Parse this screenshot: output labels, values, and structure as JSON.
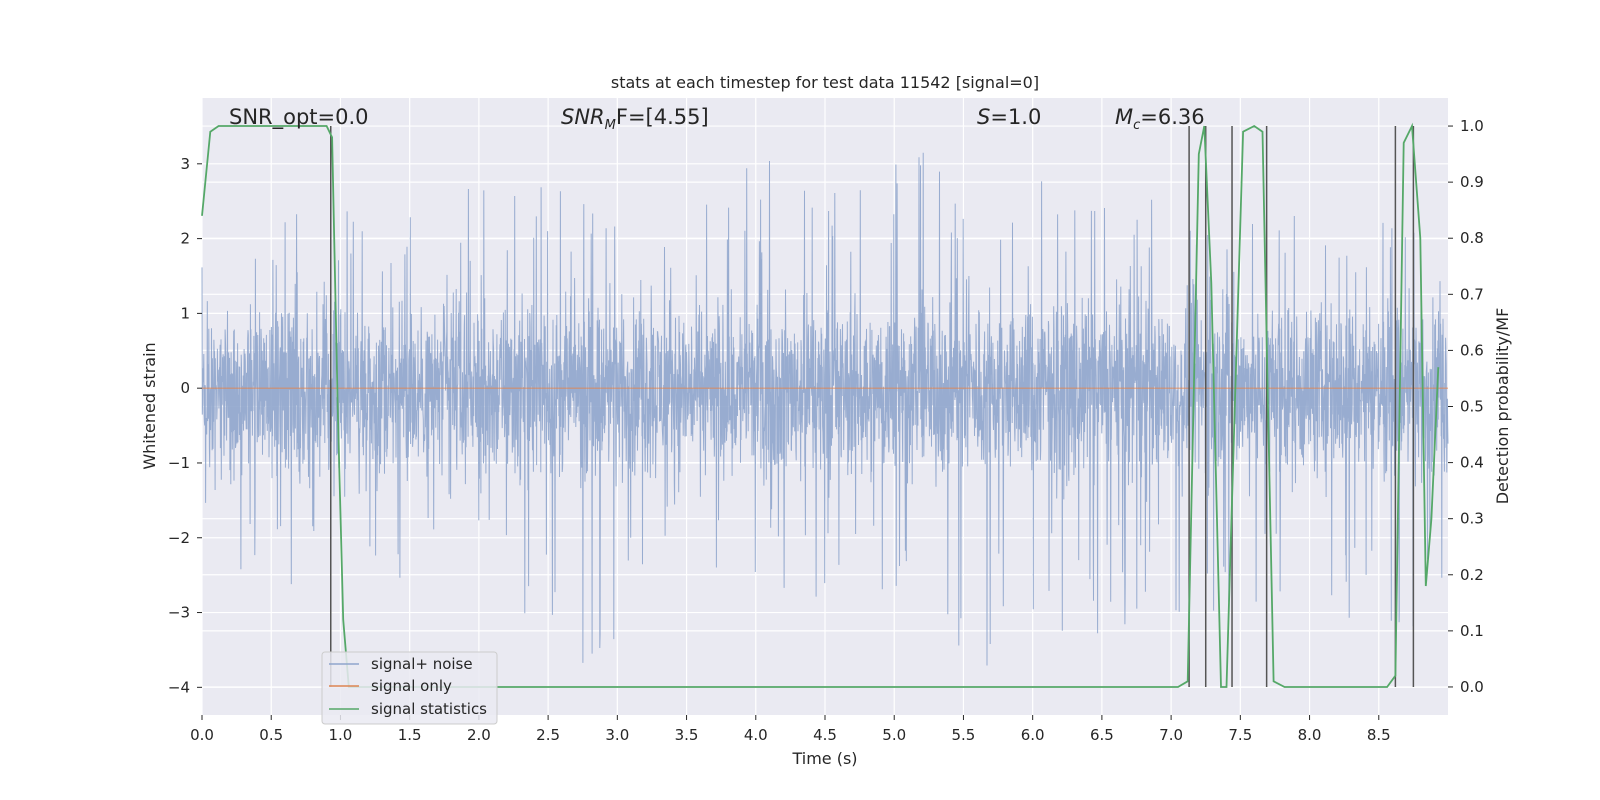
{
  "chart_data": {
    "type": "line",
    "title": "stats at each timestep for test data 11542 [signal=0]",
    "xlabel": "Time (s)",
    "ylabel_left": "Whitened strain",
    "ylabel_right": "Detection probability/MF",
    "xlim": [
      0.0,
      9.0
    ],
    "ylim_left": [
      -4.37,
      3.88
    ],
    "ylim_right": [
      -0.05,
      1.05
    ],
    "x_ticks": [
      "0.0",
      "0.5",
      "1.0",
      "1.5",
      "2.0",
      "2.5",
      "3.0",
      "3.5",
      "4.0",
      "4.5",
      "5.0",
      "5.5",
      "6.0",
      "6.5",
      "7.0",
      "7.5",
      "8.0",
      "8.5"
    ],
    "y_ticks_left": [
      -4,
      -3,
      -2,
      -1,
      0,
      1,
      2,
      3
    ],
    "y_ticks_left_labels": [
      "−4",
      "−3",
      "−2",
      "−1",
      "0",
      "1",
      "2",
      "3"
    ],
    "y_ticks_right": [
      "0.0",
      "0.1",
      "0.2",
      "0.3",
      "0.4",
      "0.5",
      "0.6",
      "0.7",
      "0.8",
      "0.9",
      "1.0"
    ],
    "grid": true,
    "legend_position": "lower-left",
    "colors": {
      "noise": "#8fa5cc",
      "signal": "#dd8452",
      "stats": "#55a868",
      "markers": "#555555",
      "background": "#eaeaf2",
      "grid": "#ffffff"
    },
    "series": [
      {
        "name": "signal+ noise",
        "axis": "left",
        "style": "dense noise band",
        "typical_range": [
          -1.7,
          1.6
        ],
        "x": [
          0.05,
          0.12,
          0.36,
          0.58,
          0.92,
          1.55,
          2.0,
          2.6,
          3.1,
          3.38,
          4.0,
          4.55,
          5.3,
          5.65,
          6.0,
          6.4,
          7.0,
          7.45,
          7.9,
          8.25,
          8.75
        ],
        "y_max": [
          2.4,
          2.9,
          2.4,
          2.3,
          2.6,
          2.6,
          2.7,
          2.8,
          2.4,
          2.5,
          3.15,
          2.7,
          3.5,
          2.0,
          2.8,
          2.6,
          2.5,
          2.1,
          2.6,
          2.4,
          2.4
        ],
        "y_min": [
          -2.0,
          -2.6,
          -2.5,
          -2.9,
          -2.1,
          -3.0,
          -2.1,
          -4.0,
          -3.3,
          -2.5,
          -2.6,
          -3.0,
          -3.5,
          -3.9,
          -3.1,
          -3.4,
          -3.2,
          -3.4,
          -2.6,
          -3.1,
          -3.3
        ]
      },
      {
        "name": "signal only",
        "axis": "left",
        "x": [
          0.0,
          9.0
        ],
        "y": [
          0.0,
          0.0
        ]
      },
      {
        "name": "signal statistics",
        "axis": "right",
        "x": [
          0.0,
          0.06,
          0.12,
          0.2,
          0.5,
          0.9,
          0.94,
          0.98,
          1.02,
          1.06,
          1.1,
          1.5,
          3.0,
          5.0,
          6.5,
          6.8,
          7.05,
          7.12,
          7.2,
          7.24,
          7.29,
          7.36,
          7.4,
          7.46,
          7.52,
          7.6,
          7.66,
          7.7,
          7.74,
          7.82,
          8.0,
          8.4,
          8.56,
          8.62,
          8.68,
          8.74,
          8.8,
          8.84,
          8.88,
          8.93
        ],
        "y": [
          0.84,
          0.99,
          1.0,
          1.0,
          1.0,
          1.0,
          0.98,
          0.5,
          0.12,
          0.0,
          0.0,
          0.0,
          0.0,
          0.0,
          0.0,
          0.0,
          0.0,
          0.01,
          0.95,
          1.0,
          0.72,
          0.0,
          0.0,
          0.5,
          0.99,
          1.0,
          0.99,
          0.5,
          0.01,
          0.0,
          0.0,
          0.0,
          0.0,
          0.02,
          0.97,
          1.0,
          0.8,
          0.18,
          0.3,
          0.57
        ]
      }
    ],
    "vertical_lines_x": [
      0.93,
      7.13,
      7.25,
      7.44,
      7.69,
      8.62,
      8.75
    ],
    "annotations": [
      "SNR_opt=0.0",
      "SNR",
      "M",
      "F=[4.55]",
      "S",
      "=1.0",
      "M",
      "c",
      "=6.36"
    ]
  }
}
